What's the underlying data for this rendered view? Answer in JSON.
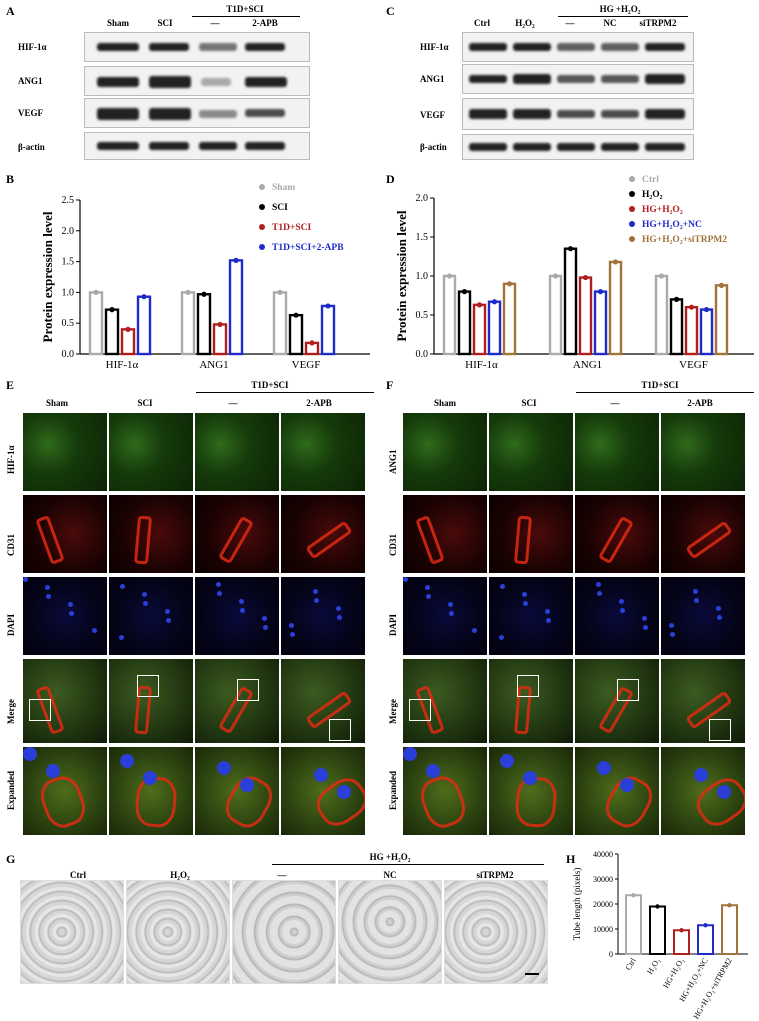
{
  "panels": {
    "A": "A",
    "B": "B",
    "C": "C",
    "D": "D",
    "E": "E",
    "F": "F",
    "G": "G",
    "H": "H"
  },
  "panel_a": {
    "cols": [
      "Sham",
      "SCI",
      "—",
      "2-APB"
    ],
    "group": "T1D+SCI",
    "rows": [
      "HIF-1α",
      "ANG1",
      "VEGF",
      "β-actin"
    ]
  },
  "panel_c": {
    "cols": [
      "Ctrl",
      "H₂O₂",
      "—",
      "NC",
      "siTRPM2"
    ],
    "group": "HG +H₂O₂",
    "rows": [
      "HIF-1α",
      "ANG1",
      "VEGF",
      "β-actin"
    ]
  },
  "panel_e": {
    "cols": [
      "Sham",
      "SCI",
      "—",
      "2-APB"
    ],
    "group": "T1D+SCI",
    "rows": [
      "HIF-1α",
      "CD31",
      "DAPI",
      "Merge",
      "Expanded"
    ]
  },
  "panel_f": {
    "cols": [
      "Sham",
      "SCI",
      "—",
      "2-APB"
    ],
    "group": "T1D+SCI",
    "rows": [
      "ANG1",
      "CD31",
      "DAPI",
      "Merge",
      "Expanded"
    ]
  },
  "panel_g": {
    "cols": [
      "Ctrl",
      "H₂O₂",
      "—",
      "NC",
      "siTRPM2"
    ],
    "group": "HG +H₂O₂"
  },
  "chart_data": [
    {
      "id": "B",
      "type": "bar",
      "ylabel": "Protein expression level",
      "ylim": [
        0,
        2.5
      ],
      "yticks": [
        "0.0",
        "0.5",
        "1.0",
        "1.5",
        "2.0",
        "2.5"
      ],
      "categories": [
        "HIF-1α",
        "ANG1",
        "VEGF"
      ],
      "series": [
        {
          "name": "Sham",
          "color": "#aaaaaa",
          "values": [
            1.0,
            1.0,
            1.0
          ]
        },
        {
          "name": "SCI",
          "color": "#000000",
          "values": [
            0.72,
            0.97,
            0.63
          ]
        },
        {
          "name": "T1D+SCI",
          "color": "#b01e1e",
          "values": [
            0.4,
            0.48,
            0.18
          ]
        },
        {
          "name": "T1D+SCI+2-APB",
          "color": "#1f2bc8",
          "values": [
            0.93,
            1.52,
            0.78
          ]
        }
      ],
      "sig": [
        "*",
        "**",
        "*",
        "**",
        "***"
      ]
    },
    {
      "id": "D",
      "type": "bar",
      "ylabel": "Protein expression level",
      "ylim": [
        0,
        2.0
      ],
      "yticks": [
        "0.0",
        "0.5",
        "1.0",
        "1.5",
        "2.0"
      ],
      "categories": [
        "HIF-1α",
        "ANG1",
        "VEGF"
      ],
      "series": [
        {
          "name": "Ctrl",
          "color": "#aaaaaa",
          "values": [
            1.0,
            1.0,
            1.0
          ]
        },
        {
          "name": "H₂O₂",
          "color": "#000000",
          "values": [
            0.8,
            1.35,
            0.7
          ]
        },
        {
          "name": "HG+H₂O₂",
          "color": "#b01e1e",
          "values": [
            0.63,
            0.98,
            0.6
          ]
        },
        {
          "name": "HG+H₂O₂+NC",
          "color": "#1f2bc8",
          "values": [
            0.67,
            0.8,
            0.57
          ]
        },
        {
          "name": "HG+H₂O₂+siTRPM2",
          "color": "#a0733a",
          "values": [
            0.9,
            1.18,
            0.88
          ]
        }
      ],
      "sig": [
        "*",
        "**",
        "**",
        "**",
        "*",
        "*",
        "***",
        "***"
      ]
    },
    {
      "id": "H",
      "type": "bar",
      "ylabel": "Tube length (pixels)",
      "ylim": [
        0,
        40000
      ],
      "yticks": [
        "0",
        "10000",
        "20000",
        "30000",
        "40000"
      ],
      "categories": [
        "Ctrl",
        "H₂O₂",
        "HG+H₂O₂",
        "HG+H₂O₂+NC",
        "HG+H₂O₂+siTRPM2"
      ],
      "colors": [
        "#aaaaaa",
        "#000000",
        "#b01e1e",
        "#1f2bc8",
        "#a0733a"
      ],
      "values": [
        23500,
        19000,
        9500,
        11500,
        19500
      ],
      "sig": [
        "*",
        "**",
        "*"
      ]
    }
  ]
}
